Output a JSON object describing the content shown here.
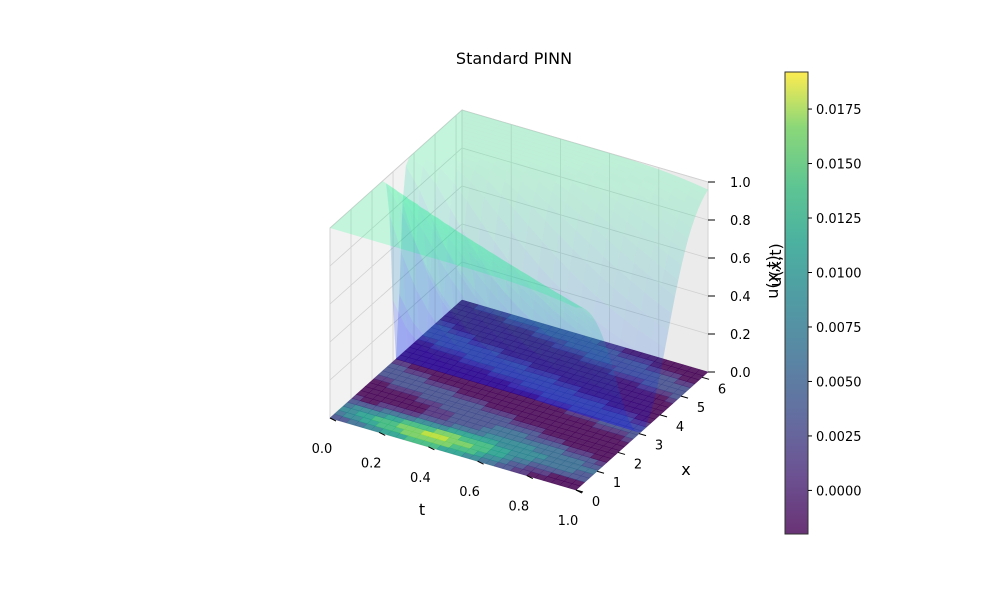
{
  "chart_data": {
    "type": "surface3d",
    "title": "Standard PINN",
    "xlabel": "t",
    "ylabel": "x",
    "zlabel": "u(x,t)",
    "xlim": [
      0,
      1
    ],
    "ylim": [
      0,
      6.283
    ],
    "zlim": [
      0,
      1
    ],
    "x_ticks": [
      "0.0",
      "0.2",
      "0.4",
      "0.6",
      "0.8",
      "1.0"
    ],
    "y_ticks": [
      "0",
      "1",
      "2",
      "3",
      "4",
      "5",
      "6"
    ],
    "z_ticks": [
      "0.0",
      "0.2",
      "0.4",
      "0.6",
      "0.8",
      "1.0"
    ],
    "grid": true,
    "colorbar": {
      "label": "u(x,t)",
      "colormap": "viridis",
      "min": -0.002,
      "max": 0.0192,
      "ticks": [
        "0.0000",
        "0.0025",
        "0.0050",
        "0.0075",
        "0.0100",
        "0.0125",
        "0.0150",
        "0.0175"
      ]
    },
    "series": [
      {
        "description_type": "exact_solution_surface",
        "colormap": "winter",
        "alpha": 0.35,
        "peak": 1.0,
        "trough": 0.0
      },
      {
        "description_type": "predicted_surface",
        "colormap": "viridis",
        "alpha": 0.8,
        "min": -0.002,
        "max": 0.0192
      }
    ]
  }
}
